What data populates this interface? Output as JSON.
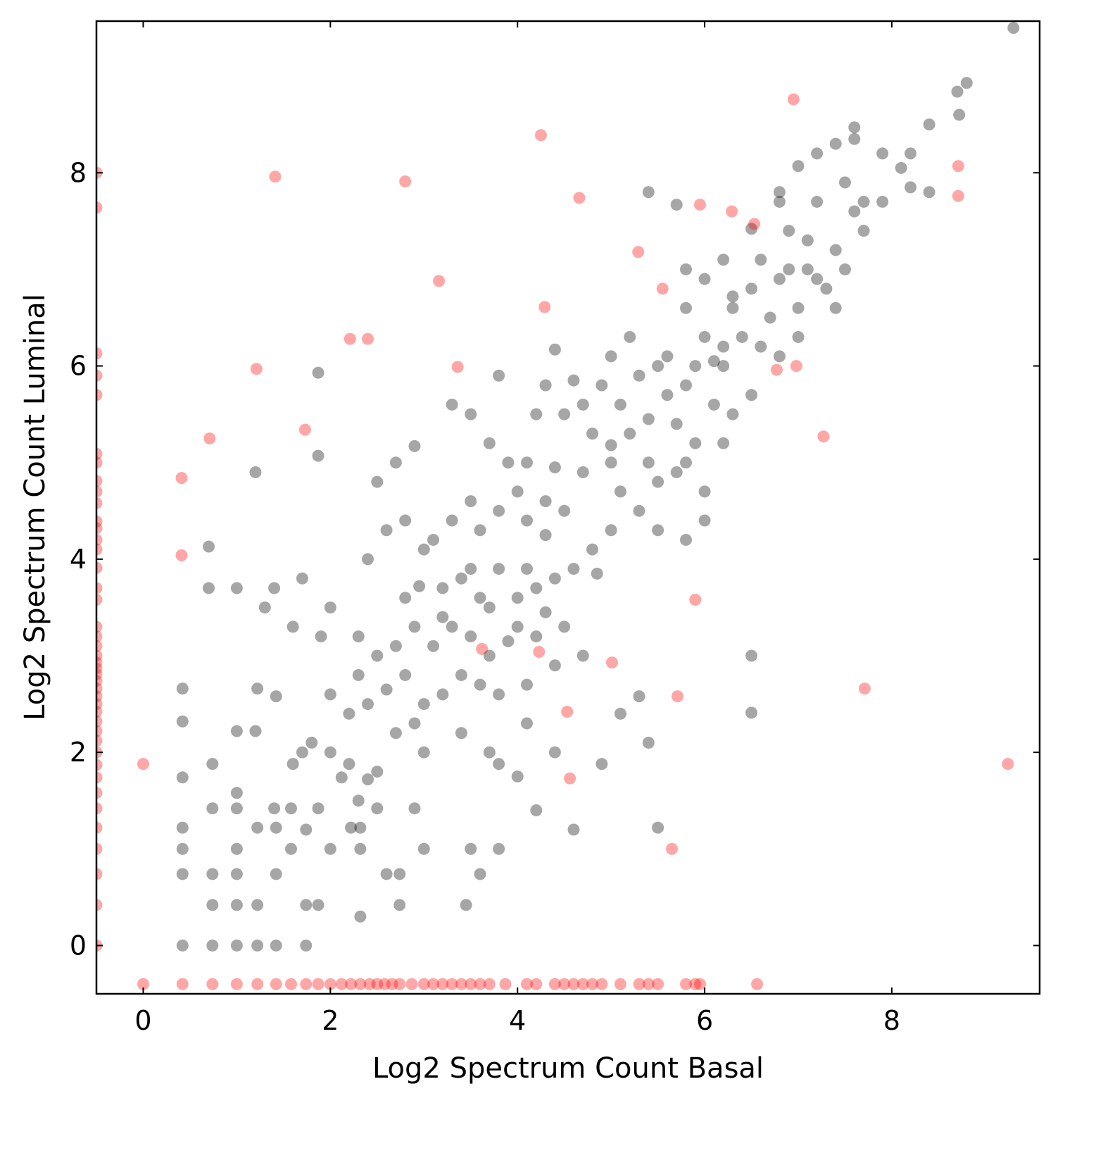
{
  "chart_data": {
    "type": "scatter",
    "x_label": "Log2 Spectrum Count Basal",
    "y_label": "Log2 Spectrum Count Luminal",
    "xlim": [
      -0.5,
      9.58
    ],
    "ylim": [
      -0.5,
      9.57
    ],
    "xticks": [
      0,
      2,
      4,
      6,
      8
    ],
    "yticks": [
      0,
      2,
      4,
      6,
      8
    ],
    "grid": false,
    "alpha": 0.35,
    "series": [
      {
        "color": "#000000",
        "x": [
          9.3,
          8.8,
          8.7,
          8.72,
          8.4,
          8.2,
          7.9,
          8.1,
          7.6,
          7.4,
          7.6,
          7.2,
          7.0,
          6.8,
          6.8,
          7.2,
          7.5,
          7.6,
          7.7,
          7.7,
          5.4,
          5.7,
          8.4,
          7.9,
          8.2,
          6.5,
          6.9,
          7.1,
          7.4,
          7.2,
          6.9,
          6.6,
          6.2,
          6.0,
          5.8,
          6.3,
          6.5,
          6.7,
          7.0,
          7.3,
          6.4,
          6.2,
          6.6,
          6.8,
          6.0,
          5.9,
          6.2,
          6.1,
          5.5,
          5.6,
          5.2,
          5.0,
          4.9,
          5.3,
          5.6,
          5.8,
          6.1,
          6.3,
          6.5,
          5.4,
          5.7,
          5.9,
          6.2,
          4.6,
          4.4,
          4.2,
          4.5,
          4.8,
          5.0,
          5.2,
          5.4,
          5.7,
          5.0,
          4.7,
          4.4,
          4.1,
          3.9,
          3.7,
          3.5,
          3.3,
          5.1,
          5.3,
          5.5,
          5.8,
          6.0,
          5.0,
          4.8,
          4.5,
          4.3,
          4.3,
          4.1,
          4.0,
          3.8,
          3.6,
          3.5,
          3.3,
          4.6,
          4.85,
          4.4,
          4.2,
          4.0,
          3.8,
          3.6,
          3.4,
          3.2,
          2.95,
          3.0,
          2.8,
          2.9,
          2.7,
          2.5,
          2.6,
          4.5,
          4.2,
          4.0,
          3.9,
          3.7,
          3.5,
          3.3,
          3.1,
          2.9,
          2.7,
          2.5,
          2.3,
          4.7,
          4.4,
          4.1,
          3.8,
          3.6,
          3.4,
          3.2,
          3.0,
          2.8,
          2.6,
          2.4,
          2.2,
          2.0,
          1.9,
          1.6,
          1.4,
          1.0,
          0.7,
          0.7,
          1.2,
          1.87,
          1.87,
          5.3,
          5.4,
          5.1,
          6.5,
          6.5,
          4.9,
          4.6,
          5.5,
          4.2,
          4.0,
          3.8,
          3.7,
          3.4,
          3.0,
          2.9,
          2.7,
          2.5,
          2.4,
          2.3,
          2.2,
          2.0,
          1.8,
          1.7,
          1.6,
          1.4,
          1.2,
          1.0,
          0.74,
          0.42,
          0.42,
          0.42,
          0.42,
          0.42,
          0.42,
          0.42,
          0.74,
          0.74,
          0.74,
          0.74,
          1.0,
          1.0,
          1.0,
          1.0,
          1.0,
          1.0,
          1.22,
          1.22,
          1.22,
          1.22,
          1.42,
          1.42,
          1.42,
          1.42,
          1.58,
          1.58,
          1.74,
          1.74,
          1.74,
          1.87,
          1.87,
          2.0,
          2.12,
          2.22,
          2.32,
          2.32,
          2.32,
          2.5,
          2.6,
          2.74,
          2.9,
          3.0,
          3.45,
          3.5,
          3.6,
          3.8,
          2.74,
          4.4,
          4.1,
          3.5,
          3.1,
          2.4,
          2.0,
          1.7,
          1.3,
          2.3,
          2.8,
          3.2,
          3.7,
          4.1,
          4.3,
          5.5,
          5.8,
          6.0,
          5.1,
          4.7,
          4.3,
          3.8,
          5.8,
          6.3,
          6.8,
          7.0,
          7.4,
          7.1,
          7.5
        ],
        "values": [
          9.5,
          8.93,
          8.84,
          8.6,
          8.5,
          8.2,
          8.2,
          8.05,
          8.47,
          8.3,
          8.35,
          8.2,
          8.07,
          7.8,
          7.7,
          7.7,
          7.9,
          7.6,
          7.7,
          7.4,
          7.8,
          7.67,
          7.8,
          7.7,
          7.85,
          7.42,
          7.4,
          7.3,
          7.2,
          6.9,
          7.0,
          7.1,
          7.1,
          6.9,
          6.6,
          6.72,
          6.8,
          6.5,
          6.6,
          6.8,
          6.3,
          6.2,
          6.2,
          6.1,
          6.3,
          6.0,
          6.0,
          6.05,
          6.0,
          6.1,
          6.3,
          6.1,
          5.8,
          5.9,
          5.7,
          5.8,
          5.6,
          5.5,
          5.7,
          5.45,
          5.4,
          5.2,
          5.2,
          5.85,
          6.17,
          5.5,
          5.5,
          5.3,
          5.0,
          5.3,
          5.0,
          4.9,
          5.18,
          4.9,
          4.95,
          5.0,
          5.0,
          5.2,
          5.5,
          5.6,
          4.7,
          4.5,
          4.3,
          4.2,
          4.4,
          4.3,
          4.1,
          4.5,
          4.6,
          4.25,
          4.4,
          4.7,
          4.5,
          4.3,
          4.6,
          4.4,
          3.9,
          3.85,
          3.8,
          3.7,
          3.6,
          3.9,
          3.6,
          3.8,
          3.7,
          3.72,
          4.1,
          4.4,
          5.17,
          5.0,
          4.8,
          4.3,
          3.3,
          3.2,
          3.3,
          3.15,
          3.0,
          3.2,
          3.3,
          3.1,
          3.3,
          3.1,
          3.0,
          3.2,
          3.0,
          2.9,
          2.7,
          2.6,
          2.7,
          2.8,
          2.6,
          2.5,
          2.8,
          2.65,
          2.5,
          2.4,
          2.6,
          3.2,
          3.3,
          3.7,
          3.7,
          3.7,
          4.13,
          4.9,
          5.07,
          5.93,
          2.58,
          2.1,
          2.4,
          2.41,
          3.0,
          1.88,
          1.2,
          1.22,
          1.4,
          1.75,
          1.88,
          2.0,
          2.2,
          2.0,
          2.3,
          2.2,
          1.8,
          1.72,
          1.5,
          1.88,
          2.0,
          2.1,
          2.0,
          1.88,
          1.42,
          2.22,
          2.22,
          1.88,
          2.66,
          2.32,
          1.74,
          1.22,
          1.0,
          0.74,
          0.0,
          1.42,
          0.74,
          0.42,
          0.0,
          1.42,
          1.58,
          1.0,
          0.74,
          0.42,
          0.0,
          2.66,
          1.22,
          0.42,
          0.0,
          2.58,
          1.22,
          0.74,
          0.0,
          1.42,
          1.0,
          1.2,
          0.42,
          0.0,
          1.42,
          0.42,
          1.0,
          1.74,
          1.22,
          1.22,
          1.0,
          0.3,
          1.42,
          0.74,
          0.74,
          1.42,
          1.0,
          0.42,
          1.0,
          0.74,
          1.0,
          0.42,
          2.0,
          2.3,
          3.9,
          4.2,
          4.0,
          3.5,
          3.8,
          3.5,
          2.8,
          3.6,
          3.4,
          3.5,
          3.9,
          3.45,
          4.8,
          5.0,
          4.7,
          5.6,
          5.6,
          5.8,
          5.9,
          7.0,
          6.6,
          6.9,
          6.3,
          6.6,
          7.0,
          7.0
        ]
      },
      {
        "color": "#ff0000",
        "x": [
          -0.5,
          -0.5,
          -0.5,
          -0.5,
          -0.5,
          -0.5,
          -0.5,
          -0.5,
          -0.5,
          -0.5,
          -0.5,
          -0.5,
          -0.5,
          -0.5,
          -0.5,
          -0.5,
          -0.5,
          -0.5,
          -0.5,
          -0.5,
          -0.5,
          -0.5,
          -0.5,
          -0.5,
          -0.5,
          -0.5,
          -0.5,
          -0.5,
          -0.5,
          -0.5,
          -0.5,
          -0.5,
          -0.5,
          -0.5,
          -0.5,
          -0.5,
          -0.5,
          -0.5,
          -0.5,
          -0.5,
          -0.5,
          -0.5,
          0,
          0.42,
          0.74,
          1,
          1.22,
          1.42,
          1.58,
          1.74,
          1.87,
          2,
          2.12,
          2.22,
          2.32,
          2.42,
          2.5,
          2.58,
          2.66,
          2.74,
          2.87,
          3,
          3.1,
          3.2,
          3.3,
          3.4,
          3.5,
          3.6,
          3.7,
          3.87,
          4.1,
          4.2,
          4.4,
          4.5,
          4.6,
          4.7,
          4.8,
          4.9,
          5.1,
          5.3,
          5.4,
          5.5,
          5.8,
          5.9,
          5.95,
          6.56,
          6.95,
          8.71,
          8.71,
          9.24,
          0,
          3.16,
          4.25,
          1.41,
          2.8,
          2.21,
          2.4,
          5.65,
          7.71,
          5.71,
          7.27,
          6.77,
          6.98,
          0.71,
          0.41,
          0.41,
          1.21,
          1.73,
          5.01,
          6.53,
          6.29,
          4.29,
          5.55,
          3.36,
          4.66,
          5.29,
          5.95,
          4.23,
          4.56,
          3.62,
          5.9,
          4.53
        ],
        "values": [
          0,
          0.42,
          0.74,
          1,
          1.22,
          1.42,
          1.58,
          1.74,
          1.87,
          2,
          2.12,
          2.22,
          2.32,
          2.42,
          2.5,
          2.58,
          2.66,
          2.74,
          2.81,
          2.87,
          2.93,
          3,
          3.1,
          3.2,
          3.3,
          3.58,
          3.7,
          3.91,
          4.1,
          4.2,
          4.32,
          4.39,
          4.58,
          4.7,
          4.81,
          5,
          5.09,
          5.7,
          5.9,
          6.13,
          7.64,
          8,
          -0.4,
          -0.4,
          -0.4,
          -0.4,
          -0.4,
          -0.4,
          -0.4,
          -0.4,
          -0.4,
          -0.4,
          -0.4,
          -0.4,
          -0.4,
          -0.4,
          -0.4,
          -0.4,
          -0.4,
          -0.4,
          -0.4,
          -0.4,
          -0.4,
          -0.4,
          -0.4,
          -0.4,
          -0.4,
          -0.4,
          -0.4,
          -0.4,
          -0.4,
          -0.4,
          -0.4,
          -0.4,
          -0.4,
          -0.4,
          -0.4,
          -0.4,
          -0.4,
          -0.4,
          -0.4,
          -0.4,
          -0.4,
          -0.4,
          -0.4,
          -0.4,
          8.76,
          8.07,
          7.76,
          1.88,
          1.88,
          6.88,
          8.39,
          7.96,
          7.91,
          6.28,
          6.28,
          1.0,
          2.66,
          2.58,
          5.27,
          5.96,
          6.0,
          5.25,
          4.84,
          4.04,
          5.97,
          5.34,
          2.93,
          7.47,
          7.6,
          6.61,
          6.8,
          5.99,
          7.74,
          7.18,
          7.67,
          3.04,
          1.73,
          3.07,
          3.58,
          2.42
        ]
      }
    ]
  }
}
